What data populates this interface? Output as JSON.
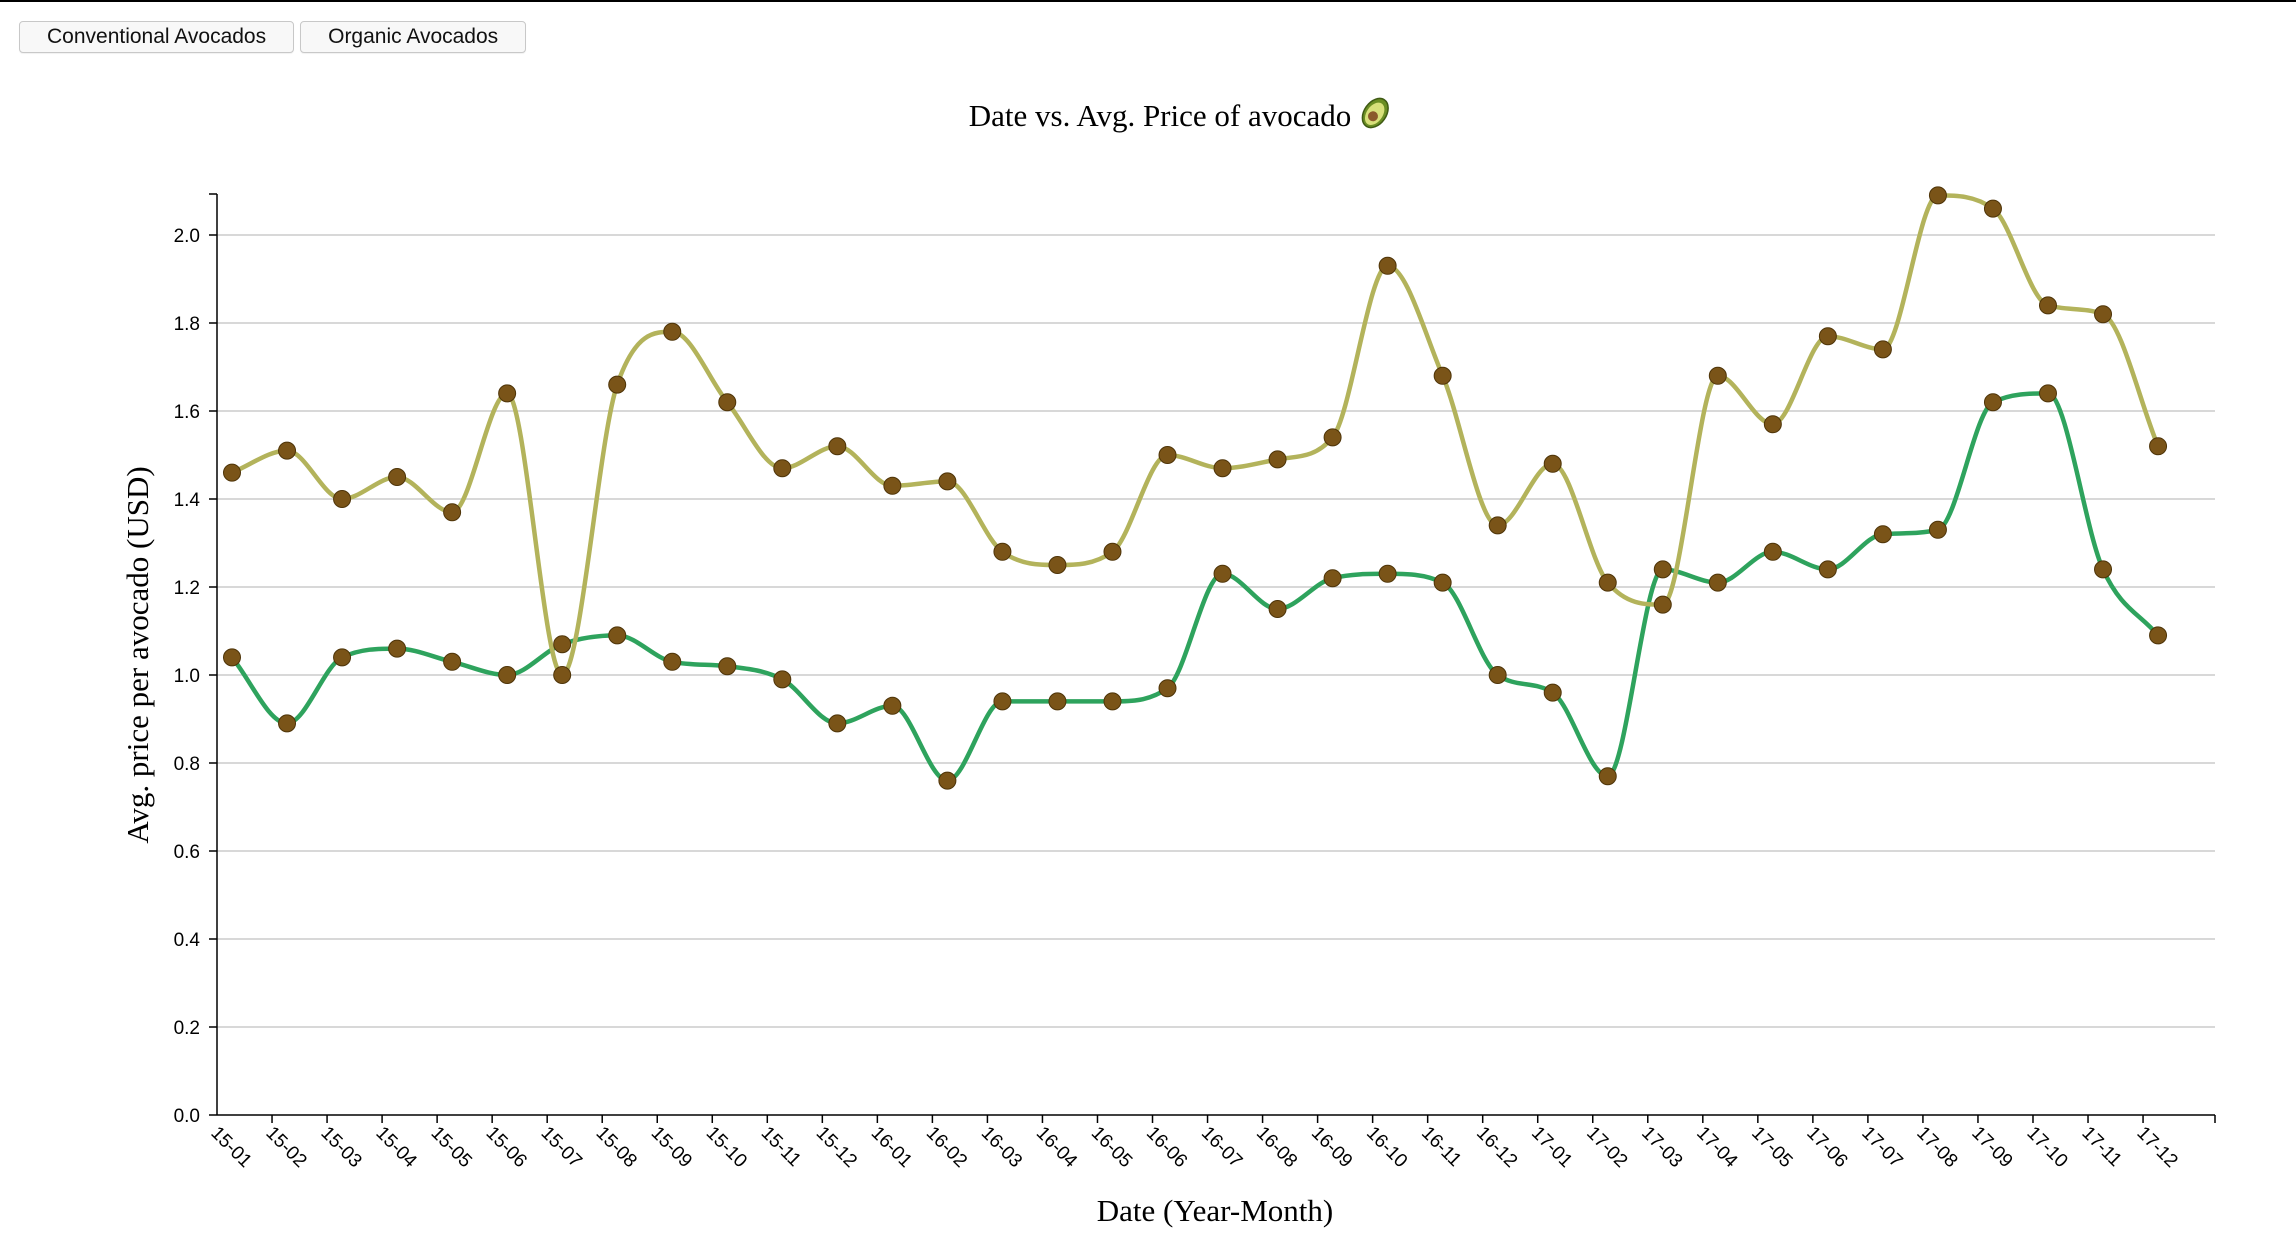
{
  "toolbar": {
    "buttons": [
      {
        "label": "Conventional Avocados"
      },
      {
        "label": "Organic Avocados"
      }
    ]
  },
  "colors": {
    "conventional_line": "#2ea35d",
    "organic_line": "#b3b35b",
    "point_fill": "#7a5418",
    "point_stroke": "#4e3408",
    "grid": "#cccccc"
  },
  "chart_data": {
    "type": "line",
    "title": "Date vs. Avg. Price of avocado",
    "title_icon": "avocado-icon",
    "xlabel": "Date (Year-Month)",
    "ylabel": "Avg. price per avocado (USD)",
    "ylim": [
      0,
      2.1
    ],
    "y_ticks": [
      "0.0",
      "0.2",
      "0.4",
      "0.6",
      "0.8",
      "1.0",
      "1.2",
      "1.4",
      "1.6",
      "1.8",
      "2.0"
    ],
    "grid": true,
    "categories": [
      "15-01",
      "15-02",
      "15-03",
      "15-04",
      "15-05",
      "15-06",
      "15-07",
      "15-08",
      "15-09",
      "15-10",
      "15-11",
      "15-12",
      "16-01",
      "16-02",
      "16-03",
      "16-04",
      "16-05",
      "16-06",
      "16-07",
      "16-08",
      "16-09",
      "16-10",
      "16-11",
      "16-12",
      "17-01",
      "17-02",
      "17-03",
      "17-04",
      "17-05",
      "17-06",
      "17-07",
      "17-08",
      "17-09",
      "17-10",
      "17-11",
      "17-12"
    ],
    "series": [
      {
        "key": "conventional",
        "values": [
          1.04,
          0.89,
          1.04,
          1.06,
          1.03,
          1.0,
          1.07,
          1.09,
          1.03,
          1.02,
          0.99,
          0.89,
          0.93,
          0.76,
          0.94,
          0.94,
          0.94,
          0.97,
          1.23,
          1.15,
          1.22,
          1.23,
          1.21,
          1.0,
          0.96,
          0.77,
          1.24,
          1.21,
          1.28,
          1.24,
          1.32,
          1.33,
          1.62,
          1.64,
          1.24,
          1.09
        ]
      },
      {
        "key": "organic",
        "values": [
          1.46,
          1.51,
          1.4,
          1.45,
          1.37,
          1.64,
          1.0,
          1.66,
          1.78,
          1.62,
          1.47,
          1.52,
          1.43,
          1.44,
          1.28,
          1.25,
          1.28,
          1.5,
          1.47,
          1.49,
          1.54,
          1.93,
          1.68,
          1.34,
          1.48,
          1.21,
          1.16,
          1.68,
          1.57,
          1.77,
          1.74,
          2.09,
          2.06,
          1.84,
          1.82,
          1.52
        ]
      }
    ]
  }
}
